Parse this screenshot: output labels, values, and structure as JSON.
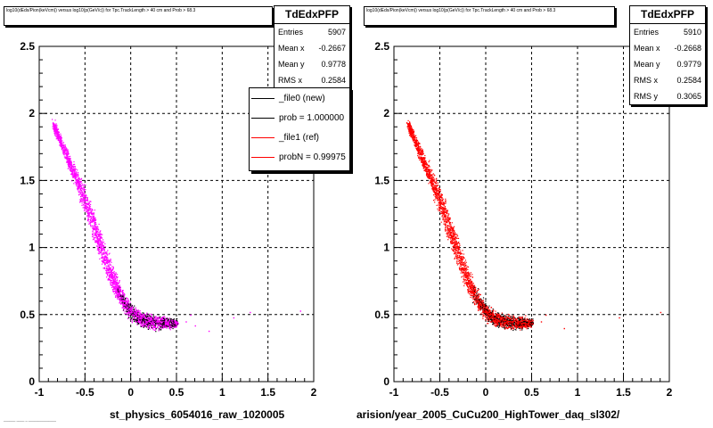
{
  "footnote": "______ ____ _ ______________",
  "chart_data": [
    {
      "type": "scatter",
      "title": "log10(dEdx/Pion(keVcm)) versus log10(p(GeV/c)) for Tpc.TrackLength > 40 cm and Prob > 68.3",
      "xlabel": "st_physics_6054016_raw_1020005",
      "ylabel": "",
      "xlim": [
        -1,
        2
      ],
      "ylim": [
        0,
        2.5
      ],
      "x_ticks": [
        "-1",
        "-0.5",
        "0",
        "0.5",
        "1",
        "1.5",
        "2"
      ],
      "y_ticks": [
        "0",
        "0.5",
        "1",
        "1.5",
        "2",
        "2.5"
      ],
      "grid": true,
      "colors": [
        "#ff00ff",
        "#000000"
      ],
      "stats": {
        "name": "TdEdxPFP",
        "rows": [
          {
            "label": "Entries",
            "value": "5907"
          },
          {
            "label": "Mean x",
            "value": "-0.2667"
          },
          {
            "label": "Mean y",
            "value": "0.9778"
          },
          {
            "label": "RMS x",
            "value": "0.2584"
          }
        ]
      },
      "legend": {
        "placement": "top-right",
        "entries": [
          {
            "label": "_file0 (new)",
            "color": "#000000"
          },
          {
            "label": "prob = 1.000000",
            "color": "#000000"
          },
          {
            "label": "_file1 (ref)",
            "color": "#ff0000"
          },
          {
            "label": "probN = 0.99975",
            "color": "#ff0000"
          }
        ]
      },
      "band": [
        {
          "x": -0.85,
          "y": 1.93
        },
        {
          "x": -0.8,
          "y": 1.84
        },
        {
          "x": -0.7,
          "y": 1.68
        },
        {
          "x": -0.6,
          "y": 1.52
        },
        {
          "x": -0.5,
          "y": 1.35
        },
        {
          "x": -0.4,
          "y": 1.15
        },
        {
          "x": -0.3,
          "y": 0.95
        },
        {
          "x": -0.2,
          "y": 0.76
        },
        {
          "x": -0.1,
          "y": 0.62
        },
        {
          "x": 0.0,
          "y": 0.52
        },
        {
          "x": 0.1,
          "y": 0.47
        },
        {
          "x": 0.2,
          "y": 0.45
        },
        {
          "x": 0.3,
          "y": 0.44
        },
        {
          "x": 0.4,
          "y": 0.44
        },
        {
          "x": 0.5,
          "y": 0.44
        }
      ],
      "band_width": [
        0.03,
        0.03,
        0.04,
        0.05,
        0.06,
        0.06,
        0.06,
        0.06,
        0.05,
        0.05,
        0.05,
        0.05,
        0.05,
        0.04,
        0.03
      ],
      "sparse_points": [
        {
          "x": 0.6,
          "y": 0.45
        },
        {
          "x": 0.65,
          "y": 0.5
        },
        {
          "x": 0.7,
          "y": 0.42
        },
        {
          "x": 0.85,
          "y": 0.38
        },
        {
          "x": 1.12,
          "y": 0.48
        },
        {
          "x": 1.3,
          "y": 0.52
        },
        {
          "x": 1.85,
          "y": 0.53
        }
      ]
    },
    {
      "type": "scatter",
      "title": "log10(dEdx/Pion(keVcm)) versus log10(p(GeV/c)) for Tpc.TrackLength > 40 cm and Prob > 68.3",
      "xlabel": "arision/year_2005_CuCu200_HighTower_daq_sl302/",
      "ylabel": "",
      "xlim": [
        -1,
        2
      ],
      "ylim": [
        0,
        2.5
      ],
      "x_ticks": [
        "-1",
        "-0.5",
        "0",
        "0.5",
        "1",
        "1.5",
        "2"
      ],
      "y_ticks": [
        "0",
        "0.5",
        "1",
        "1.5",
        "2",
        "2.5"
      ],
      "grid": true,
      "colors": [
        "#ff0000",
        "#000000"
      ],
      "stats": {
        "name": "TdEdxPFP",
        "rows": [
          {
            "label": "Entries",
            "value": "5910"
          },
          {
            "label": "Mean x",
            "value": "-0.2668"
          },
          {
            "label": "Mean y",
            "value": "0.9779"
          },
          {
            "label": "RMS x",
            "value": "0.2584"
          },
          {
            "label": "RMS y",
            "value": "0.3065"
          }
        ]
      },
      "band": [
        {
          "x": -0.85,
          "y": 1.93
        },
        {
          "x": -0.8,
          "y": 1.84
        },
        {
          "x": -0.7,
          "y": 1.68
        },
        {
          "x": -0.6,
          "y": 1.52
        },
        {
          "x": -0.5,
          "y": 1.35
        },
        {
          "x": -0.4,
          "y": 1.15
        },
        {
          "x": -0.3,
          "y": 0.95
        },
        {
          "x": -0.2,
          "y": 0.76
        },
        {
          "x": -0.1,
          "y": 0.62
        },
        {
          "x": 0.0,
          "y": 0.52
        },
        {
          "x": 0.1,
          "y": 0.47
        },
        {
          "x": 0.2,
          "y": 0.45
        },
        {
          "x": 0.3,
          "y": 0.44
        },
        {
          "x": 0.4,
          "y": 0.44
        },
        {
          "x": 0.5,
          "y": 0.44
        }
      ],
      "band_width": [
        0.03,
        0.03,
        0.04,
        0.05,
        0.06,
        0.06,
        0.06,
        0.06,
        0.05,
        0.05,
        0.05,
        0.05,
        0.05,
        0.04,
        0.03
      ],
      "sparse_points": [
        {
          "x": 0.6,
          "y": 0.45
        },
        {
          "x": 0.65,
          "y": 0.5
        },
        {
          "x": 0.85,
          "y": 0.4
        },
        {
          "x": 1.45,
          "y": 0.48
        },
        {
          "x": 1.9,
          "y": 0.52
        }
      ]
    }
  ]
}
